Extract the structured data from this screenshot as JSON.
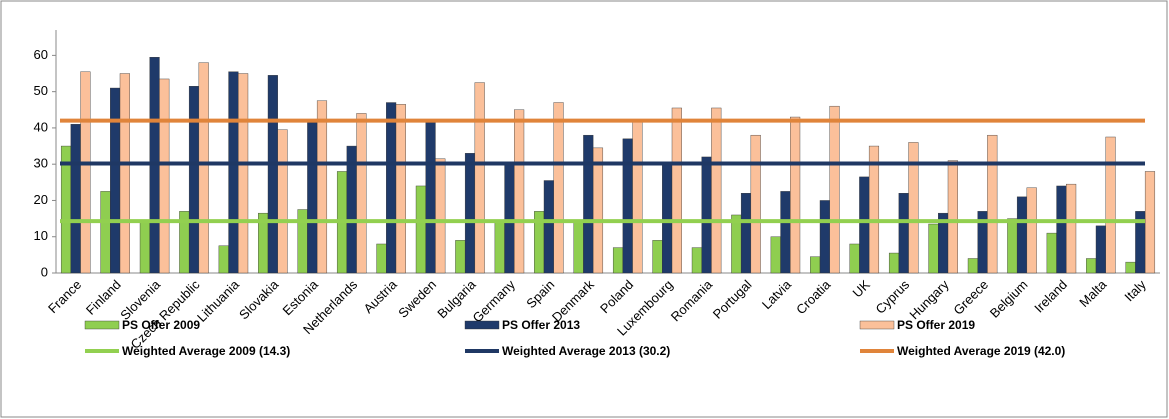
{
  "chart_data": {
    "type": "bar",
    "categories": [
      "France",
      "Finland",
      "Slovenia",
      "Czech Republic",
      "Lithuania",
      "Slovakia",
      "Estonia",
      "Netherlands",
      "Austria",
      "Sweden",
      "Bulgaria",
      "Germany",
      "Spain",
      "Denmark",
      "Poland",
      "Luxembourg",
      "Romania",
      "Portugal",
      "Latvia",
      "Croatia",
      "UK",
      "Cyprus",
      "Hungary",
      "Greece",
      "Belgium",
      "Ireland",
      "Malta",
      "Italy"
    ],
    "series": [
      {
        "name": "PS Offer 2009",
        "color": "#8fce50",
        "values": [
          35,
          22.5,
          14,
          17,
          7.5,
          16.5,
          17.5,
          28,
          8,
          24,
          9,
          14,
          17,
          14,
          7,
          9,
          7,
          16,
          10,
          4.5,
          8,
          5.5,
          13.5,
          4,
          15,
          11,
          4,
          3
        ]
      },
      {
        "name": "PS Offer 2013",
        "color": "#1f3a6a",
        "values": [
          41,
          51,
          59.5,
          51.5,
          55.5,
          54.5,
          41.5,
          35,
          47,
          41.5,
          33,
          30,
          25.5,
          38,
          37,
          30,
          32,
          22,
          22.5,
          20,
          26.5,
          22,
          16.5,
          17,
          21,
          24,
          13,
          17
        ]
      },
      {
        "name": "PS Offer 2019",
        "color": "#fbc09a",
        "values": [
          55.5,
          55,
          53.5,
          58,
          55,
          39.5,
          47.5,
          44,
          46.5,
          31.5,
          52.5,
          45,
          47,
          34.5,
          42,
          45.5,
          45.5,
          38,
          43,
          46,
          35,
          36,
          31,
          38,
          23.5,
          24.5,
          37.5,
          28
        ]
      }
    ],
    "lines": [
      {
        "name": "Weighted Average 2009 (14.3)",
        "color": "#92d050",
        "value": 14.3
      },
      {
        "name": "Weighted Average 2013 (30.2)",
        "color": "#1f3864",
        "value": 30.2
      },
      {
        "name": "Weighted Average 2019 (42.0)",
        "color": "#e0843a",
        "value": 42.0
      }
    ],
    "ylim": [
      0,
      67
    ],
    "yticks": [
      0,
      10,
      20,
      30,
      40,
      50,
      60
    ],
    "grid": false
  }
}
